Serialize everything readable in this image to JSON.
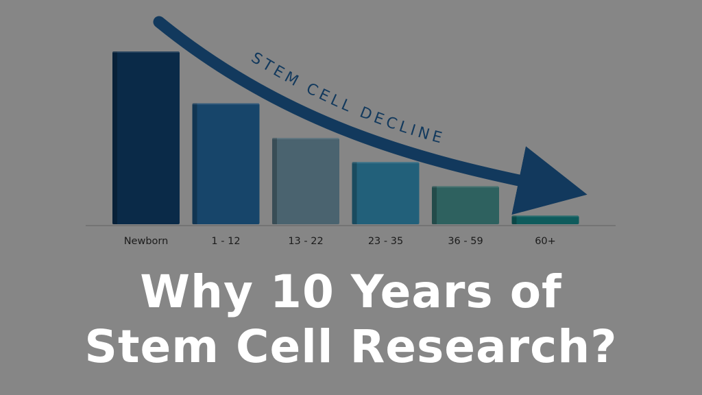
{
  "chart_data": {
    "type": "bar",
    "categories": [
      "Newborn",
      "1 - 12",
      "13 - 22",
      "23 - 35",
      "36 - 59",
      "60+"
    ],
    "values": [
      100,
      70,
      50,
      36,
      22,
      5
    ],
    "ylim": [
      0,
      100
    ],
    "grid": false,
    "bar_colors": [
      "#0a2a48",
      "#17456a",
      "#4a636f",
      "#22607a",
      "#2e615f",
      "#0e5b5c"
    ],
    "annotation": "STEM CELL DECLINE",
    "annotation_color": "#12395d"
  },
  "headline": {
    "line1": "Why 10 Years of",
    "line2": "Stem Cell Research?"
  },
  "colors": {
    "background": "#868686",
    "text": "#ffffff",
    "tick_label": "#1b1b1b",
    "baseline": "#6f6f6f"
  }
}
